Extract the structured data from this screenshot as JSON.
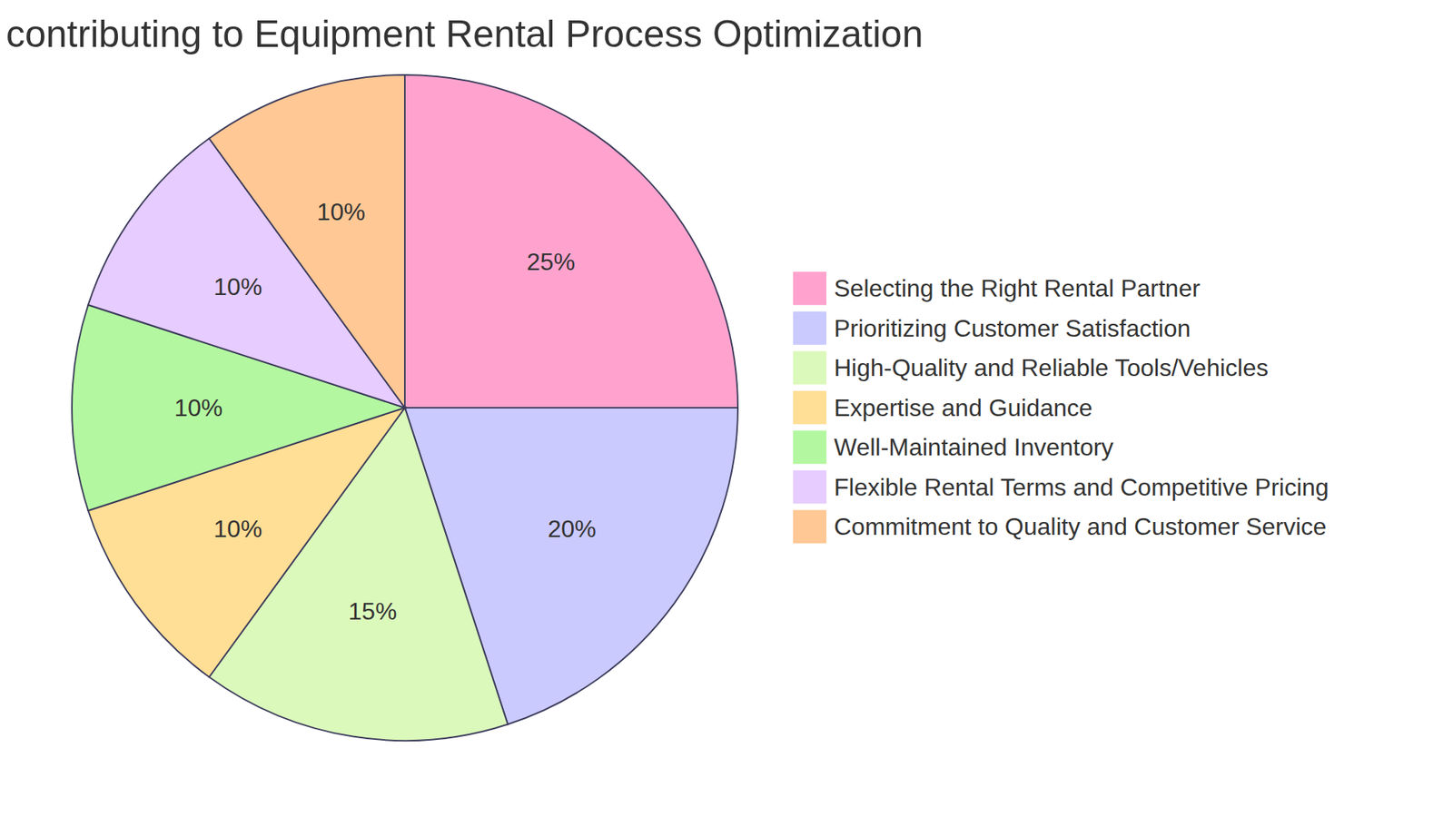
{
  "chart_data": {
    "type": "pie",
    "title": "contributing to Equipment Rental Process Optimization",
    "categories": [
      "Selecting the Right Rental Partner",
      "Prioritizing Customer Satisfaction",
      "High-Quality and Reliable Tools/Vehicles",
      "Expertise and Guidance",
      "Well-Maintained Inventory",
      "Flexible Rental Terms and Competitive Pricing",
      "Commitment to Quality and Customer Service"
    ],
    "values": [
      25,
      20,
      15,
      10,
      10,
      10,
      10
    ],
    "value_labels": [
      "25%",
      "20%",
      "15%",
      "10%",
      "10%",
      "10%",
      "10%"
    ],
    "colors": [
      "#ffa3ce",
      "#cacaff",
      "#dbf9bb",
      "#ffde95",
      "#b3f8a0",
      "#e6ccff",
      "#ffc895"
    ],
    "data_labels": true,
    "legend": "right"
  }
}
